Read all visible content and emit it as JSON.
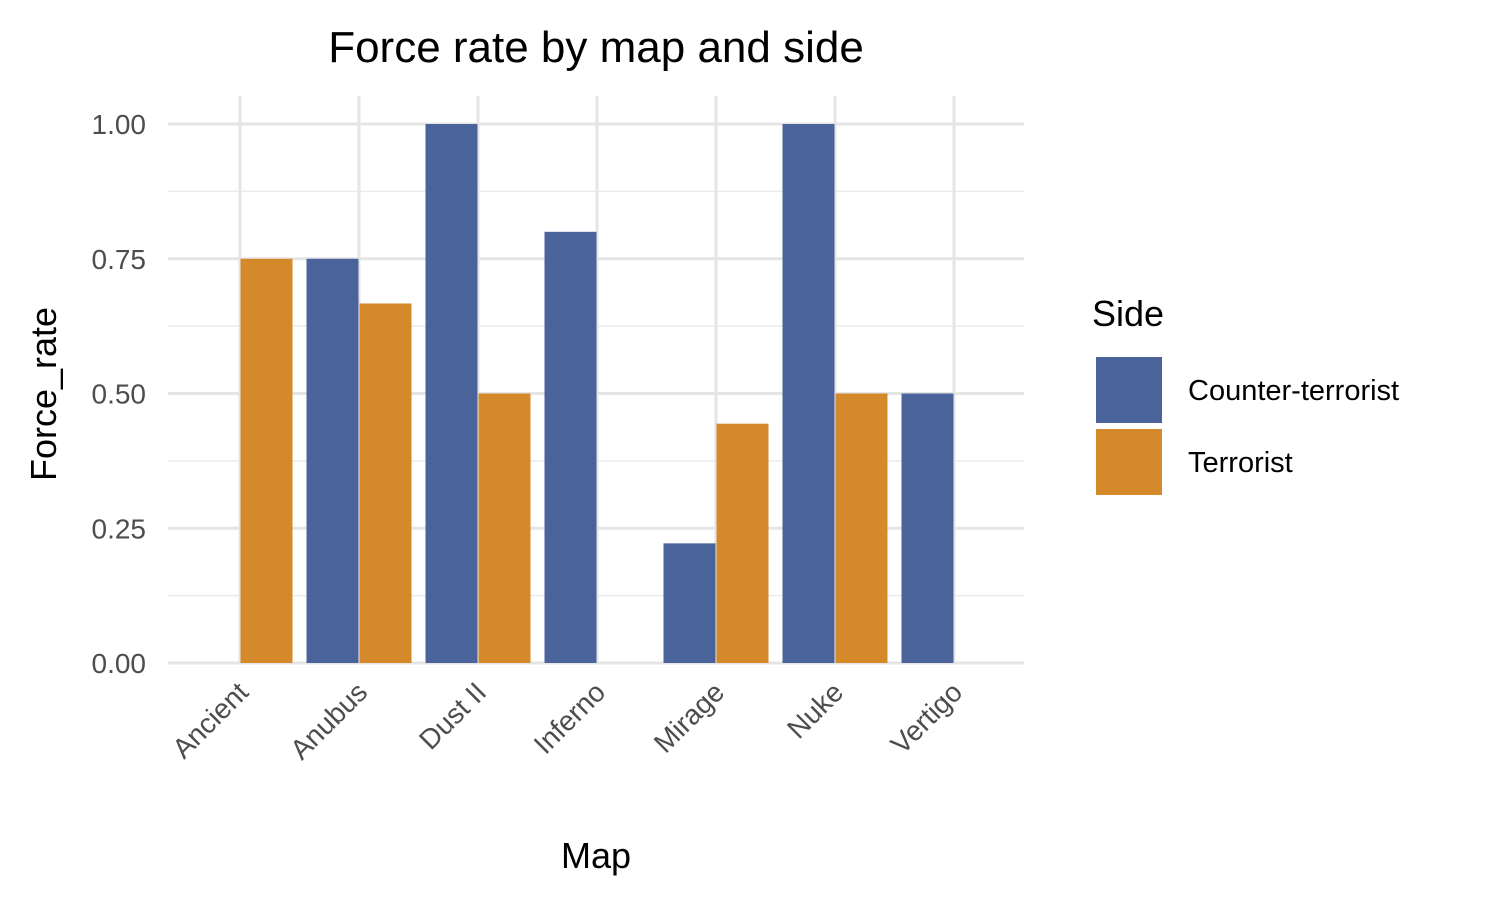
{
  "chart_data": {
    "type": "bar",
    "title": "Force rate by map and side",
    "xlabel": "Map",
    "ylabel": "Force_rate",
    "categories": [
      "Ancient",
      "Anubus",
      "Dust II",
      "Inferno",
      "Mirage",
      "Nuke",
      "Vertigo"
    ],
    "series": [
      {
        "name": "Counter-terrorist",
        "color": "#4A639B",
        "values": [
          null,
          0.75,
          1.0,
          0.8,
          0.222,
          1.0,
          0.5
        ]
      },
      {
        "name": "Terrorist",
        "color": "#D4892B",
        "values": [
          0.75,
          0.667,
          0.5,
          null,
          0.444,
          0.5,
          null
        ]
      }
    ],
    "ylim": [
      0,
      1
    ],
    "y_ticks": [
      0,
      0.25,
      0.5,
      0.75,
      1.0
    ],
    "y_tick_labels": [
      "0.00",
      "0.25",
      "0.50",
      "0.75",
      "1.00"
    ],
    "grid": true,
    "legend": {
      "title": "Side",
      "position": "right"
    }
  }
}
